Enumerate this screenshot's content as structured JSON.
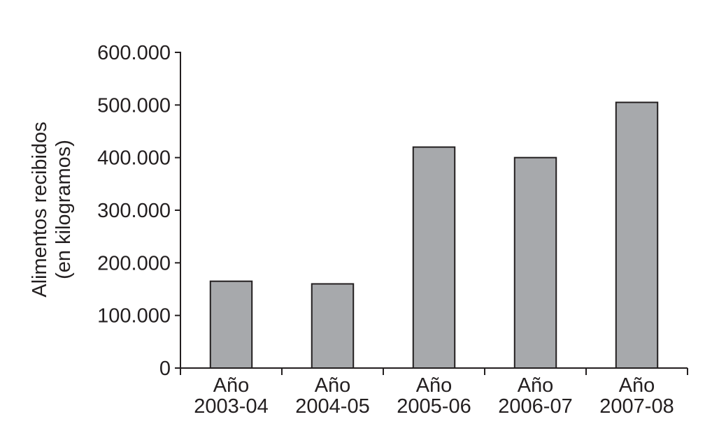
{
  "chart_data": {
    "type": "bar",
    "y_label": [
      "Alimentos recibidos",
      "(en kilogramos)"
    ],
    "categories": [
      "Año 2003-04",
      "Año 2004-05",
      "Año 2005-06",
      "Año 2006-07",
      "Año 2007-08"
    ],
    "values": [
      165000,
      160000,
      420000,
      400000,
      505000
    ],
    "color": "#a7a9ac",
    "ylim": [
      0,
      600000
    ],
    "yticks": [
      0,
      {
        "value": 100000,
        "label": "100.000"
      },
      {
        "value": 200000,
        "label": "200.000"
      },
      {
        "value": 300000,
        "label": "300.000"
      },
      {
        "value": 400000,
        "label": "400.000"
      },
      {
        "value": 500000,
        "label": "500.000"
      },
      {
        "value": 600000,
        "label": "600.000"
      }
    ],
    "grid": false
  }
}
